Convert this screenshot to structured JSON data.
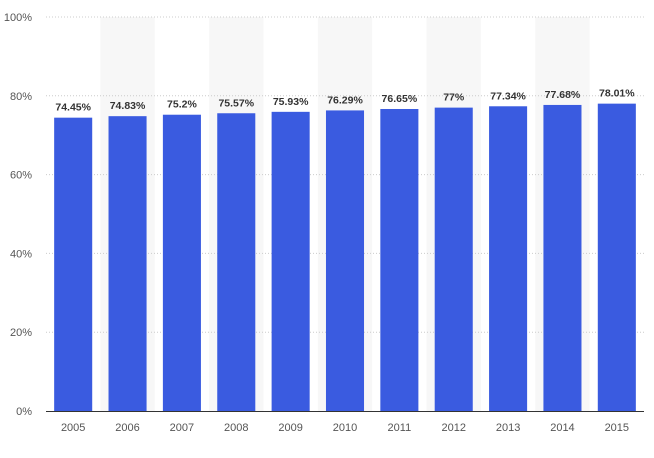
{
  "chart_data": {
    "type": "bar",
    "title": "",
    "xlabel": "",
    "ylabel": "",
    "categories": [
      "2005",
      "2006",
      "2007",
      "2008",
      "2009",
      "2010",
      "2011",
      "2012",
      "2013",
      "2014",
      "2015"
    ],
    "values": [
      74.45,
      74.83,
      75.2,
      75.57,
      75.93,
      76.29,
      76.65,
      77,
      77.34,
      77.68,
      78.01
    ],
    "value_labels": [
      "74.45%",
      "74.83%",
      "75.2%",
      "75.57%",
      "75.93%",
      "76.29%",
      "76.65%",
      "77%",
      "77.34%",
      "77.68%",
      "78.01%"
    ],
    "ylim": [
      0,
      100
    ],
    "yticks": [
      0,
      20,
      40,
      60,
      80,
      100
    ],
    "ytick_labels": [
      "0%",
      "20%",
      "40%",
      "60%",
      "80%",
      "100%"
    ],
    "grid": true,
    "bar_color": "#3a5be0",
    "alt_band_color": "#f7f7f7"
  }
}
